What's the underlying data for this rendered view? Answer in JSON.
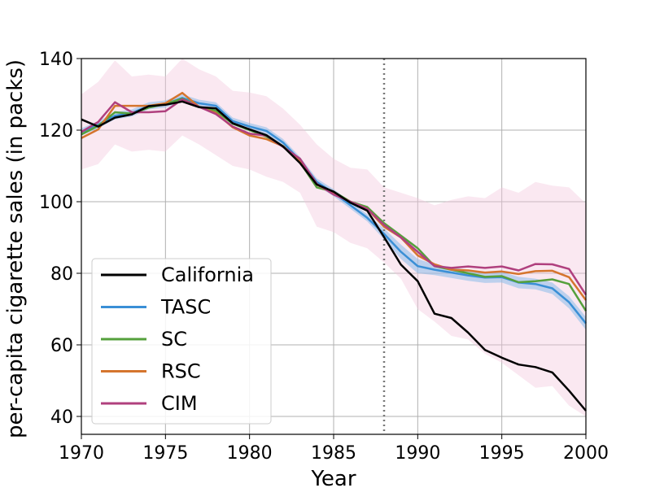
{
  "chart_data": {
    "type": "line",
    "title": "",
    "xlabel": "Year",
    "ylabel": "per-capita cigarette sales (in packs)",
    "xlim": [
      1970,
      2000
    ],
    "ylim": [
      35,
      140
    ],
    "grid": true,
    "legend_position": "lower-left",
    "xticks": [
      1970,
      1975,
      1980,
      1985,
      1990,
      1995,
      2000
    ],
    "yticks": [
      40,
      60,
      80,
      100,
      120,
      140
    ],
    "intervention_year": 1988,
    "x": [
      1970,
      1971,
      1972,
      1973,
      1974,
      1975,
      1976,
      1977,
      1978,
      1979,
      1980,
      1981,
      1982,
      1983,
      1984,
      1985,
      1986,
      1987,
      1988,
      1989,
      1990,
      1991,
      1992,
      1993,
      1994,
      1995,
      1996,
      1997,
      1998,
      1999,
      2000
    ],
    "series": [
      {
        "name": "California",
        "color": "#000000",
        "values": [
          123.0,
          121.0,
          123.5,
          124.4,
          126.7,
          127.1,
          128.0,
          126.4,
          126.1,
          121.9,
          120.2,
          118.6,
          115.4,
          110.8,
          104.8,
          102.8,
          99.7,
          97.5,
          90.1,
          82.4,
          77.8,
          68.7,
          67.5,
          63.4,
          58.6,
          56.4,
          54.5,
          53.8,
          52.3,
          47.2,
          41.6
        ]
      },
      {
        "name": "TASC",
        "color": "#3a8fd6",
        "values": [
          119.5,
          121.5,
          124.0,
          124.8,
          126.8,
          127.3,
          129.0,
          127.5,
          126.8,
          122.5,
          121.0,
          119.8,
          116.5,
          111.5,
          105.5,
          102.5,
          99.0,
          95.5,
          91.0,
          86.0,
          82.0,
          81.0,
          80.2,
          79.4,
          78.8,
          78.9,
          77.4,
          77.0,
          75.8,
          71.9,
          66.0
        ]
      },
      {
        "name": "SC",
        "color": "#55a03c",
        "values": [
          118.8,
          121.2,
          125.0,
          124.6,
          126.3,
          127.3,
          128.8,
          126.5,
          125.4,
          121.8,
          120.0,
          118.2,
          115.5,
          111.0,
          104.0,
          102.8,
          100.0,
          98.5,
          94.0,
          90.5,
          87.0,
          82.0,
          81.0,
          80.0,
          79.0,
          79.2,
          77.5,
          77.8,
          78.3,
          77.0,
          69.5
        ]
      },
      {
        "name": "RSC",
        "color": "#d5752e",
        "values": [
          117.8,
          120.2,
          126.8,
          126.8,
          126.8,
          127.5,
          130.4,
          126.5,
          124.8,
          120.8,
          118.5,
          117.5,
          115.5,
          111.2,
          104.8,
          102.2,
          100.0,
          98.0,
          93.0,
          90.0,
          85.0,
          82.5,
          81.0,
          80.8,
          80.2,
          80.5,
          79.8,
          80.6,
          80.7,
          78.9,
          72.5
        ]
      },
      {
        "name": "CIM",
        "color": "#b0407e",
        "values": [
          119.5,
          122.3,
          127.8,
          125.0,
          125.0,
          125.3,
          128.6,
          126.5,
          124.5,
          121.0,
          119.0,
          118.5,
          115.3,
          112.0,
          105.0,
          102.0,
          100.0,
          98.0,
          93.5,
          90.0,
          86.0,
          82.0,
          81.5,
          81.9,
          81.5,
          81.9,
          80.8,
          82.6,
          82.5,
          81.2,
          74.0
        ]
      }
    ],
    "band_tasc": {
      "lower": [
        118.5,
        120.5,
        123.0,
        123.8,
        125.8,
        126.3,
        128.0,
        126.5,
        125.8,
        121.5,
        120.0,
        118.8,
        115.5,
        110.5,
        104.5,
        101.5,
        98.0,
        94.5,
        89.5,
        84.0,
        80.0,
        79.5,
        78.7,
        77.9,
        77.3,
        77.4,
        75.8,
        75.5,
        74.2,
        70.2,
        64.2
      ],
      "upper": [
        120.5,
        122.5,
        125.0,
        125.8,
        127.8,
        128.3,
        130.0,
        128.5,
        127.8,
        123.5,
        122.0,
        120.8,
        117.5,
        112.5,
        106.5,
        103.5,
        100.0,
        96.5,
        92.5,
        88.0,
        84.0,
        82.5,
        81.7,
        80.9,
        80.3,
        80.4,
        79.0,
        78.5,
        77.4,
        73.6,
        67.8
      ]
    },
    "band_cim": {
      "lower": [
        109.0,
        110.5,
        116.0,
        114.0,
        114.5,
        114.0,
        118.5,
        116.0,
        113.0,
        110.0,
        109.0,
        107.0,
        105.5,
        102.5,
        93.0,
        91.5,
        88.5,
        87.0,
        83.0,
        78.5,
        70.0,
        66.5,
        62.5,
        61.5,
        57.5,
        55.0,
        51.5,
        48.0,
        48.5,
        43.0,
        40.0
      ],
      "upper": [
        130.0,
        133.5,
        139.5,
        135.0,
        135.5,
        135.0,
        140.0,
        137.0,
        135.0,
        131.0,
        130.5,
        129.5,
        126.0,
        121.5,
        116.0,
        112.0,
        109.5,
        109.0,
        104.0,
        102.5,
        101.0,
        99.0,
        100.5,
        101.5,
        101.0,
        104.0,
        102.5,
        105.5,
        104.5,
        104.0,
        99.5
      ]
    }
  }
}
